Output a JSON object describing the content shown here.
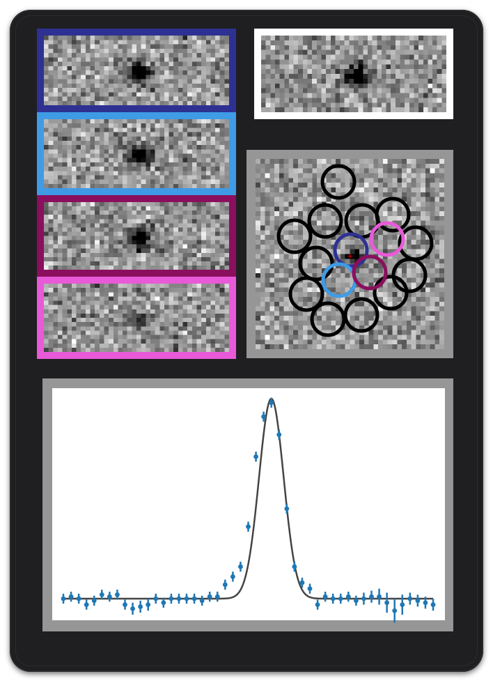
{
  "figure": {
    "stamps": [
      {
        "id": "stamp-1",
        "frame_color": "#2e3192",
        "blob_strength": 1.0
      },
      {
        "id": "stamp-2",
        "frame_color": "#3f9be6",
        "blob_strength": 0.85
      },
      {
        "id": "stamp-3",
        "frame_color": "#8b0f5e",
        "blob_strength": 0.9
      },
      {
        "id": "stamp-4",
        "frame_color": "#e85ad8",
        "blob_strength": 0.45
      },
      {
        "id": "stamp-combined",
        "frame_color": "#ffffff",
        "blob_strength": 1.0
      }
    ],
    "aperture_map": {
      "frame_color": "#969696",
      "ring_color_default": "#000000",
      "highlight_colors": [
        "#2e3192",
        "#e85ad8",
        "#3f9be6",
        "#8b0f5e"
      ],
      "marker_color": "#ff0000",
      "aperture_count": 16
    }
  },
  "chart_data": {
    "type": "scatter",
    "title": "",
    "xlabel": "",
    "ylabel": "",
    "xlim": [
      0,
      50
    ],
    "ylim": [
      -0.1,
      1.05
    ],
    "grid": false,
    "axis_tick_labels_visible": false,
    "x_ticks": [
      2,
      12,
      22,
      32,
      42
    ],
    "y_ticks": [
      0,
      0.18,
      0.36,
      0.54,
      0.72,
      0.9
    ],
    "series": [
      {
        "kind": "points_with_errorbars",
        "color": "#1f77b4",
        "x": [
          0,
          1,
          2,
          3,
          4,
          5,
          6,
          7,
          8,
          9,
          10,
          11,
          12,
          13,
          14,
          15,
          16,
          17,
          18,
          19,
          20,
          21,
          22,
          23,
          24,
          25,
          26,
          27,
          28,
          29,
          30,
          31,
          32,
          33,
          34,
          35,
          36,
          37,
          38,
          39,
          40,
          41,
          42,
          43,
          44,
          45,
          46,
          47,
          48
        ],
        "y": [
          0.0,
          0.01,
          0.0,
          -0.03,
          -0.01,
          0.02,
          0.01,
          0.02,
          -0.03,
          -0.05,
          -0.04,
          -0.03,
          0.0,
          -0.02,
          0.0,
          0.0,
          0.0,
          0.0,
          -0.01,
          0.01,
          0.01,
          0.07,
          0.11,
          0.16,
          0.36,
          0.71,
          0.91,
          0.98,
          0.82,
          0.45,
          0.16,
          0.08,
          0.05,
          -0.03,
          0.01,
          0.0,
          0.0,
          0.01,
          -0.01,
          0.0,
          0.01,
          0.01,
          -0.02,
          -0.06,
          -0.03,
          0.0,
          -0.01,
          -0.02,
          -0.03
        ],
        "yerr": [
          0.025,
          0.025,
          0.025,
          0.025,
          0.025,
          0.025,
          0.025,
          0.025,
          0.025,
          0.03,
          0.03,
          0.03,
          0.025,
          0.025,
          0.025,
          0.025,
          0.025,
          0.025,
          0.025,
          0.025,
          0.025,
          0.025,
          0.025,
          0.025,
          0.025,
          0.025,
          0.025,
          0.025,
          0.025,
          0.025,
          0.025,
          0.025,
          0.025,
          0.025,
          0.025,
          0.025,
          0.025,
          0.025,
          0.025,
          0.03,
          0.03,
          0.04,
          0.05,
          0.06,
          0.05,
          0.03,
          0.03,
          0.03,
          0.03
        ]
      },
      {
        "kind": "gaussian_fit",
        "color": "#444444",
        "amplitude": 1.0,
        "center": 27.0,
        "sigma": 1.6,
        "baseline": 0.0
      }
    ]
  }
}
